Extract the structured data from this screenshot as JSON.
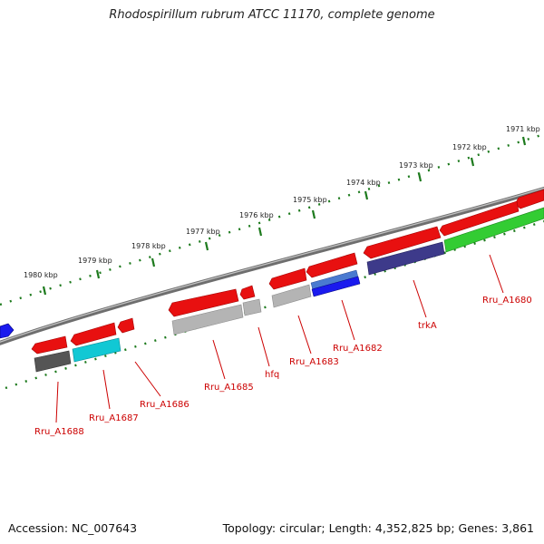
{
  "title": "Rhodospirillum rubrum ATCC 11170, complete genome",
  "accession": "Accession: NC_007643",
  "summary": "Topology: circular; Length: 4,352,825 bp; Genes: 3,861",
  "kbp_labels": [
    "1971 kbp",
    "1972 kbp",
    "1973 kbp",
    "1974 kbp",
    "1975 kbp",
    "1976 kbp",
    "1977 kbp",
    "1978 kbp",
    "1979 kbp",
    "1980 kbp"
  ],
  "gene_labels": [
    "Rru_A1680",
    "trkA",
    "Rru_A1682",
    "Rru_A1683",
    "hfq",
    "Rru_A1685",
    "Rru_A1686",
    "Rru_A1687",
    "Rru_A1688"
  ],
  "colors": {
    "forward_gene": "#e81010",
    "backbone": "#888888",
    "tick": "#1d7a1d",
    "label": "#cc0000",
    "trkA": "#3d3a8a",
    "Rru_A1680": "#33cc33",
    "Rru_A1682": "#1a1aee",
    "Rru_A1687": "#11c8d4",
    "Rru_A1688": "#555555",
    "grey_gene": "#b4b4b4"
  }
}
